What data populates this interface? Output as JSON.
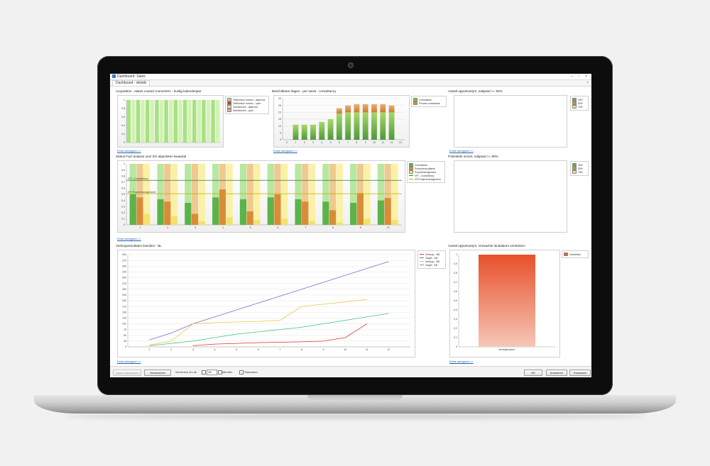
{
  "window": {
    "title": "Dashboard: Sales",
    "tab": "Dashboard - details",
    "controls": "–  ▫  ×"
  },
  "colors": {
    "light_green": "#a6e27e",
    "green": "#5cb34a",
    "orange": "#d98c38",
    "red": "#d9342b",
    "yellow": "#f1e36b",
    "pink": "#f0a2a2",
    "purple": "#7b6bd0",
    "lime": "#7fbf3f"
  },
  "panels": {
    "acquisition": {
      "title": "Acquisition - status contact momenten - huidig kalenderjaar",
      "details_link": "Extra weergave >>",
      "legend": [
        "Telefonisch contact - afgerond",
        "Telefonisch contact - open",
        "Klantbezoek - afgerond",
        "Klantbezoek - open"
      ],
      "chart_data": {
        "type": "bar",
        "ylim": [
          0,
          1
        ],
        "yticks": [
          "0",
          "0,2",
          "0,4",
          "0,6",
          "0,8",
          "1"
        ],
        "values": [
          1,
          1,
          1,
          1,
          1,
          1,
          1,
          1,
          1,
          1,
          1,
          1,
          1,
          1,
          1,
          1,
          1,
          1,
          1,
          1
        ]
      }
    },
    "available_days": {
      "title": "Beschikbare dagen - per week - consultancy",
      "details_link": "Extra weergave >>",
      "legend": [
        "Consultants",
        "Prowse consultants"
      ],
      "chart_data": {
        "type": "bar",
        "ylim": [
          0,
          30
        ],
        "yticks": [
          "0",
          "5",
          "10",
          "15",
          "20",
          "25",
          "30"
        ],
        "categories": [
          "0",
          "1",
          "2",
          "3",
          "4",
          "5",
          "6",
          "7",
          "8",
          "9",
          "10",
          "11",
          "12",
          "13"
        ],
        "series": [
          {
            "name": "Consultants",
            "values": [
              0,
              11,
              11,
              11,
              13,
              15,
              19,
              20,
              20,
              20,
              20,
              20,
              20,
              0
            ]
          },
          {
            "name": "Prowse consultants",
            "values": [
              0,
              0,
              0,
              0,
              0,
              0,
              4,
              5,
              6,
              6,
              6,
              6,
              5,
              0
            ]
          }
        ]
      }
    },
    "opportunities_90": {
      "title": "Aantal opportunity's, natijasal >= 90%",
      "details_link": "Extra weergave >>",
      "legend": [
        "25%",
        "50%",
        "75%"
      ]
    },
    "target_status": {
      "title": "Status Fact analyse voor t/m afgesloten kwaartal",
      "details_link": "Extra weergave >>",
      "legend": [
        "Consultants",
        "Productconsultants",
        "Projectmanagement",
        "VPI - Consultancy",
        "VPI Projectmanagement"
      ],
      "line_labels": [
        "VPI - Consultancy",
        "VPI Projectmanagement"
      ],
      "chart_data": {
        "type": "bar",
        "ylim": [
          0,
          1
        ],
        "yticks": [
          "0",
          "0,1",
          "0,2",
          "0,3",
          "0,4",
          "0,5",
          "0,6",
          "0,7",
          "0,8",
          "0,9",
          "1"
        ],
        "categories": [
          "1",
          "2",
          "3",
          "4",
          "5",
          "6",
          "7",
          "8",
          "9",
          "10"
        ],
        "series": [
          {
            "name": "Consultants",
            "values": [
              0.5,
              0.42,
              0.36,
              0.45,
              0.42,
              0.45,
              0.42,
              0.38,
              0.36,
              0.4
            ]
          },
          {
            "name": "Productconsultants",
            "values": [
              0.45,
              0.38,
              0.18,
              0.58,
              0.22,
              0.5,
              0.38,
              0.24,
              0.52,
              0.44
            ]
          },
          {
            "name": "Projectmanagement",
            "values": [
              0.18,
              0.14,
              0.06,
              0.12,
              0.08,
              0.1,
              0.06,
              0.04,
              0.1,
              0.08
            ]
          }
        ],
        "hlines": [
          {
            "name": "VPI - Consultancy",
            "value": 0.73
          },
          {
            "name": "VPI Projectmanagement",
            "value": 0.51
          }
        ]
      }
    },
    "potential": {
      "title": "Potentiele omzet, natijasal >= 90%",
      "legend": [
        "25%",
        "50%",
        "75%"
      ]
    },
    "sales_forecast": {
      "title": "Verkoopresultaten lisenties - NL",
      "details_link": "Extra weergave >>",
      "legend": [
        "Verkoop - NB",
        "Target - NB",
        "Verkoop - BB",
        "Target - BB"
      ],
      "chart_data": {
        "type": "line",
        "x": [
          1,
          2,
          3,
          4,
          5,
          6,
          7,
          8,
          9,
          10,
          11,
          12
        ],
        "xlim": [
          0,
          13
        ],
        "ylim": [
          0,
          400
        ],
        "yticks": [
          "0",
          "25",
          "50",
          "75",
          "100",
          "125",
          "150",
          "175",
          "200",
          "225",
          "250",
          "275",
          "300",
          "325",
          "350",
          "375",
          "400"
        ],
        "series": [
          {
            "name": "Verkoop - NB",
            "x": [
              3,
              4,
              5,
              6,
              7,
              8,
              9,
              10,
              11
            ],
            "values": [
              5,
              12,
              15,
              18,
              20,
              22,
              25,
              40,
              100
            ]
          },
          {
            "name": "Target - NB",
            "x": [
              1,
              2,
              3,
              4,
              5,
              6,
              7,
              8,
              9,
              10,
              11,
              12
            ],
            "values": [
              30,
              60,
              100,
              130,
              160,
              190,
              220,
              250,
              280,
              310,
              340,
              370
            ]
          },
          {
            "name": "Verkoop - BB",
            "x": [
              1,
              2,
              3,
              4,
              5,
              6,
              7,
              8,
              9,
              10,
              11
            ],
            "values": [
              8,
              25,
              100,
              105,
              108,
              110,
              115,
              175,
              185,
              195,
              205
            ]
          },
          {
            "name": "Target - BB",
            "x": [
              1,
              2,
              3,
              4,
              5,
              6,
              7,
              8,
              9,
              10,
              11,
              12
            ],
            "values": [
              5,
              15,
              25,
              40,
              55,
              65,
              75,
              85,
              100,
              115,
              130,
              145
            ]
          }
        ]
      }
    },
    "opportunities_closing": {
      "title": "Aantal opportunity's, verwachte sluitdatum verstreken",
      "details_link": "Extra weergave >>",
      "legend": [
        "Verstreken"
      ],
      "chart_data": {
        "type": "bar",
        "ylim": [
          0,
          1
        ],
        "yticks": [
          "0",
          "0,1",
          "0,2",
          "0,3",
          "0,4",
          "0,5",
          "0,6",
          "0,7",
          "0,8",
          "0,9",
          "1"
        ],
        "categories": [
          "Bedrijfsmatum"
        ],
        "values": [
          1
        ]
      }
    }
  },
  "footer": {
    "reset_button": "Layout aanpassen",
    "refresh_button": "Ververschen",
    "interval_label": "Verversen om de",
    "interval_value": "15",
    "minutes_label": "Minuten",
    "default_label": "Standaard",
    "ok_button": "OK",
    "cancel_button": "Annuleren",
    "apply_button": "Toepassen"
  }
}
